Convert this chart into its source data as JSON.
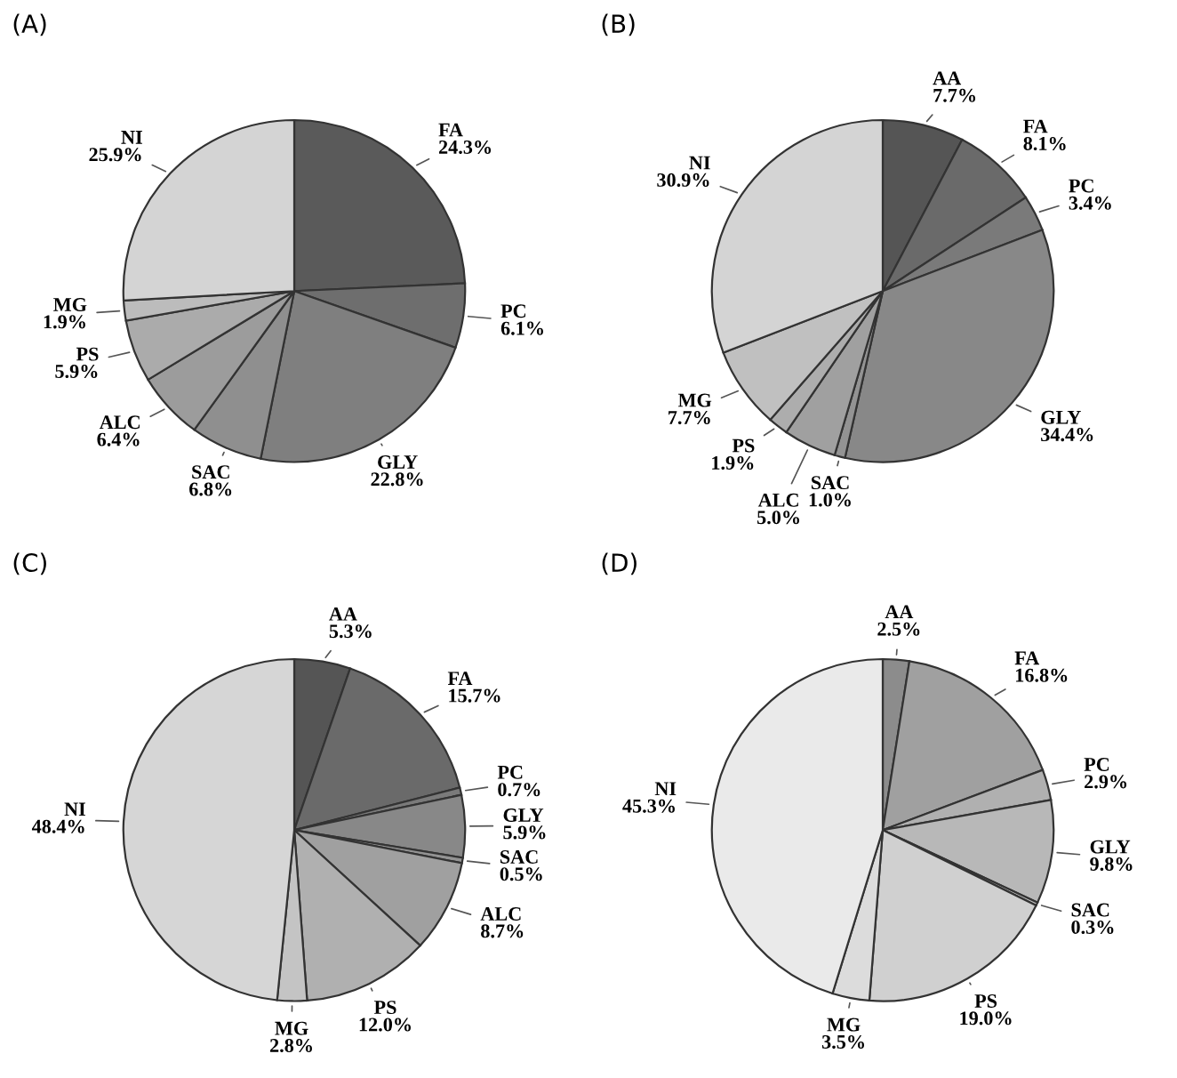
{
  "chart_data": [
    {
      "type": "pie",
      "title": "(A)",
      "categories": [
        "FA",
        "PC",
        "GLY",
        "SAC",
        "ALC",
        "PS",
        "MG",
        "NI"
      ],
      "values": [
        24.3,
        6.1,
        22.8,
        6.8,
        6.4,
        5.9,
        1.9,
        25.9
      ],
      "value_labels": [
        "24.3%",
        "6.1%",
        "22.8%",
        "6.8%",
        "6.4%",
        "5.9%",
        "1.9%",
        "25.9%"
      ],
      "colors": [
        "#5a5a5a",
        "#6e6e6e",
        "#7f7f7f",
        "#8f8f8f",
        "#9c9c9c",
        "#ababab",
        "#bcbcbc",
        "#d4d4d4"
      ]
    },
    {
      "type": "pie",
      "title": "(B)",
      "categories": [
        "AA",
        "FA",
        "PC",
        "GLY",
        "SAC",
        "ALC",
        "PS",
        "MG",
        "NI"
      ],
      "values": [
        7.7,
        8.1,
        3.4,
        34.4,
        1.0,
        5.0,
        1.9,
        7.7,
        30.9
      ],
      "value_labels": [
        "7.7%",
        "8.1%",
        "3.4%",
        "34.4%",
        "1.0%",
        "5.0%",
        "1.9%",
        "7.7%",
        "30.9%"
      ],
      "colors": [
        "#555555",
        "#6a6a6a",
        "#7a7a7a",
        "#888888",
        "#939393",
        "#a0a0a0",
        "#adadad",
        "#c0c0c0",
        "#d4d4d4"
      ]
    },
    {
      "type": "pie",
      "title": "(C)",
      "categories": [
        "AA",
        "FA",
        "PC",
        "GLY",
        "SAC",
        "ALC",
        "PS",
        "MG",
        "NI"
      ],
      "values": [
        5.3,
        15.7,
        0.7,
        5.9,
        0.5,
        8.7,
        12.0,
        2.8,
        48.4
      ],
      "value_labels": [
        "5.3%",
        "15.7%",
        "0.7%",
        "5.9%",
        "0.5%",
        "8.7%",
        "12.0%",
        "2.8%",
        "48.4%"
      ],
      "colors": [
        "#555555",
        "#6a6a6a",
        "#7a7a7a",
        "#888888",
        "#939393",
        "#a0a0a0",
        "#b0b0b0",
        "#c4c4c4",
        "#d6d6d6"
      ]
    },
    {
      "type": "pie",
      "title": "(D)",
      "categories": [
        "AA",
        "FA",
        "PC",
        "GLY",
        "SAC",
        "PS",
        "MG",
        "NI"
      ],
      "values": [
        2.5,
        16.8,
        2.9,
        9.8,
        0.3,
        19.0,
        3.5,
        45.3
      ],
      "value_labels": [
        "2.5%",
        "16.8%",
        "2.9%",
        "9.8%",
        "0.3%",
        "19.0%",
        "3.5%",
        "45.3%"
      ],
      "colors": [
        "#8c8c8c",
        "#a0a0a0",
        "#b0b0b0",
        "#b8b8b8",
        "#c0c0c0",
        "#d0d0d0",
        "#dcdcdc",
        "#eaeaea"
      ]
    }
  ]
}
